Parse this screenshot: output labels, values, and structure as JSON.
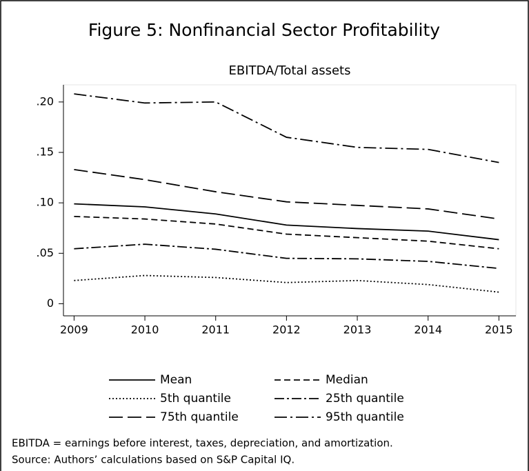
{
  "chart_data": {
    "type": "line",
    "title": "Figure 5: Nonfinancial Sector Profitability",
    "subtitle": "EBITDA/Total assets",
    "x": [
      2009,
      2010,
      2011,
      2012,
      2013,
      2014,
      2015
    ],
    "xlim": [
      2008.85,
      2015.24
    ],
    "xticks": [
      2009,
      2010,
      2011,
      2012,
      2013,
      2014,
      2015
    ],
    "ylim": [
      -0.012,
      0.217
    ],
    "yticks": [
      {
        "value": 0.2,
        "label": ".20"
      },
      {
        "value": 0.15,
        "label": ".15"
      },
      {
        "value": 0.1,
        "label": ".10"
      },
      {
        "value": 0.05,
        "label": ".05"
      },
      0
    ],
    "series": [
      {
        "name": "Mean",
        "color": "#000000",
        "style": "solid",
        "values": [
          0.099,
          0.096,
          0.089,
          0.078,
          0.0745,
          0.072,
          0.0635
        ]
      },
      {
        "name": "Median",
        "color": "#000000",
        "style": "dashed",
        "values": [
          0.0865,
          0.084,
          0.079,
          0.069,
          0.0655,
          0.062,
          0.0545
        ]
      },
      {
        "name": "5th quantile",
        "color": "#000000",
        "style": "dotted",
        "values": [
          0.023,
          0.028,
          0.026,
          0.021,
          0.023,
          0.019,
          0.0115
        ]
      },
      {
        "name": "25th quantile",
        "color": "#000000",
        "style": "dashdot",
        "values": [
          0.0545,
          0.059,
          0.054,
          0.045,
          0.0445,
          0.042,
          0.035
        ]
      },
      {
        "name": "75th quantile",
        "color": "#000000",
        "style": "longdash",
        "values": [
          0.133,
          0.123,
          0.111,
          0.101,
          0.0975,
          0.094,
          0.084
        ]
      },
      {
        "name": "95th quantile",
        "color": "#000000",
        "style": "longdashdot",
        "values": [
          0.208,
          0.199,
          0.2,
          0.165,
          0.155,
          0.153,
          0.14
        ]
      }
    ],
    "notes": [
      "EBITDA = earnings before interest, taxes, depreciation, and amortization.",
      "Source: Authors’ calculations based on S&P Capital IQ."
    ]
  }
}
